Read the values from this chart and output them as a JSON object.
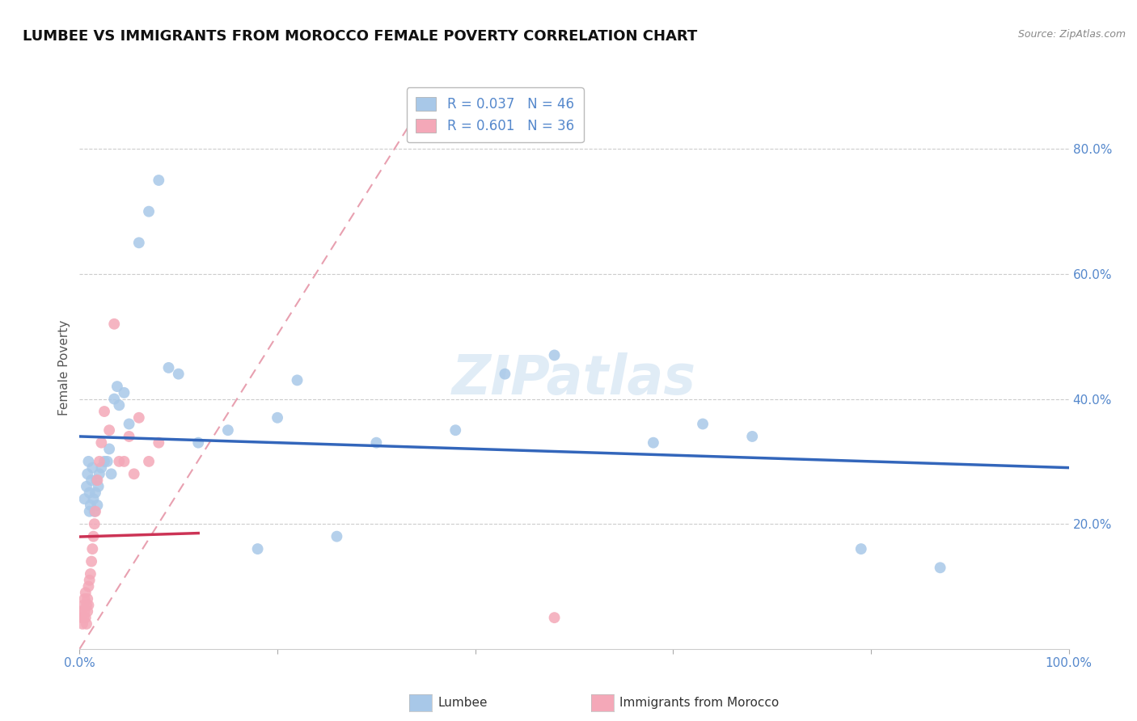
{
  "title": "LUMBEE VS IMMIGRANTS FROM MOROCCO FEMALE POVERTY CORRELATION CHART",
  "source": "Source: ZipAtlas.com",
  "ylabel": "Female Poverty",
  "ylabel_right_ticks": [
    "80.0%",
    "60.0%",
    "40.0%",
    "20.0%"
  ],
  "ylabel_right_vals": [
    0.8,
    0.6,
    0.4,
    0.2
  ],
  "xlim": [
    0.0,
    1.0
  ],
  "ylim": [
    0.0,
    0.9
  ],
  "grid_color": "#cccccc",
  "background_color": "#ffffff",
  "watermark": "ZIPatlas",
  "lumbee_color": "#a8c8e8",
  "morocco_color": "#f4a8b8",
  "lumbee_R": 0.037,
  "lumbee_N": 46,
  "morocco_R": 0.601,
  "morocco_N": 36,
  "lumbee_line_color": "#3366bb",
  "morocco_line_color": "#cc3355",
  "diagonal_color": "#e8a0b0",
  "lumbee_x": [
    0.005,
    0.007,
    0.008,
    0.009,
    0.01,
    0.01,
    0.011,
    0.012,
    0.013,
    0.014,
    0.015,
    0.016,
    0.017,
    0.018,
    0.019,
    0.02,
    0.022,
    0.025,
    0.028,
    0.03,
    0.032,
    0.035,
    0.038,
    0.04,
    0.045,
    0.05,
    0.06,
    0.07,
    0.08,
    0.09,
    0.1,
    0.12,
    0.15,
    0.18,
    0.2,
    0.22,
    0.26,
    0.3,
    0.38,
    0.43,
    0.48,
    0.58,
    0.63,
    0.68,
    0.79,
    0.87
  ],
  "lumbee_y": [
    0.24,
    0.26,
    0.28,
    0.3,
    0.22,
    0.25,
    0.23,
    0.27,
    0.29,
    0.24,
    0.22,
    0.25,
    0.27,
    0.23,
    0.26,
    0.28,
    0.29,
    0.3,
    0.3,
    0.32,
    0.28,
    0.4,
    0.42,
    0.39,
    0.41,
    0.36,
    0.65,
    0.7,
    0.75,
    0.45,
    0.44,
    0.33,
    0.35,
    0.16,
    0.37,
    0.43,
    0.18,
    0.33,
    0.35,
    0.44,
    0.47,
    0.33,
    0.36,
    0.34,
    0.16,
    0.13
  ],
  "morocco_x": [
    0.001,
    0.002,
    0.003,
    0.004,
    0.004,
    0.005,
    0.005,
    0.006,
    0.006,
    0.007,
    0.007,
    0.008,
    0.008,
    0.009,
    0.009,
    0.01,
    0.011,
    0.012,
    0.013,
    0.014,
    0.015,
    0.016,
    0.018,
    0.02,
    0.022,
    0.025,
    0.03,
    0.035,
    0.04,
    0.045,
    0.05,
    0.055,
    0.06,
    0.07,
    0.08,
    0.48
  ],
  "morocco_y": [
    0.06,
    0.05,
    0.04,
    0.07,
    0.05,
    0.06,
    0.08,
    0.09,
    0.05,
    0.07,
    0.04,
    0.06,
    0.08,
    0.07,
    0.1,
    0.11,
    0.12,
    0.14,
    0.16,
    0.18,
    0.2,
    0.22,
    0.27,
    0.3,
    0.33,
    0.38,
    0.35,
    0.52,
    0.3,
    0.3,
    0.34,
    0.28,
    0.37,
    0.3,
    0.33,
    0.05
  ]
}
